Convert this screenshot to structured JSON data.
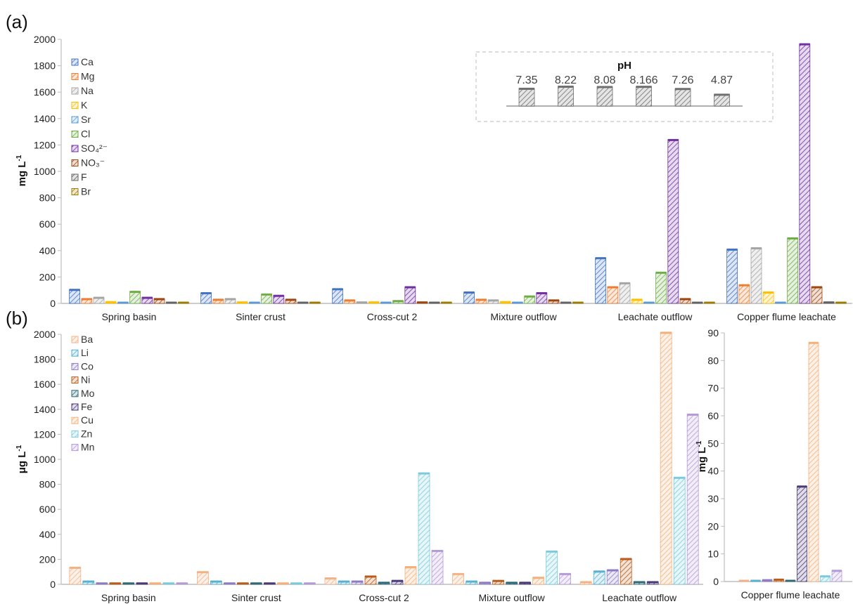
{
  "panel_labels": {
    "a": "(a)",
    "b": "(b)"
  },
  "chart_data": [
    {
      "type": "bar",
      "panel": "a",
      "categories": [
        "Spring basin",
        "Sinter crust",
        "Cross-cut 2",
        "Mixture outflow",
        "Leachate outflow",
        "Copper flume leachate"
      ],
      "ylabel": "mg L",
      "ylabel_sup": "-1",
      "ylim": [
        0,
        2000
      ],
      "yticks": [
        0,
        200,
        400,
        600,
        800,
        1000,
        1200,
        1400,
        1600,
        1800,
        2000
      ],
      "legend_position": "top-left",
      "series": [
        {
          "name": "Ca",
          "color": "#4472C4",
          "values": [
            105,
            80,
            110,
            85,
            345,
            410
          ]
        },
        {
          "name": "Mg",
          "color": "#ED7D31",
          "values": [
            35,
            30,
            25,
            30,
            125,
            140
          ]
        },
        {
          "name": "Na",
          "color": "#A5A5A5",
          "values": [
            45,
            35,
            10,
            25,
            155,
            420
          ]
        },
        {
          "name": "K",
          "color": "#FFC000",
          "values": [
            12,
            10,
            10,
            12,
            30,
            85
          ]
        },
        {
          "name": "Sr",
          "color": "#5B9BD5",
          "values": [
            5,
            5,
            5,
            5,
            5,
            5
          ]
        },
        {
          "name": "Cl",
          "color": "#70AD47",
          "values": [
            90,
            70,
            20,
            55,
            235,
            495
          ]
        },
        {
          "name": "SO₄²⁻",
          "color": "#7030A0",
          "values": [
            45,
            60,
            125,
            80,
            1240,
            1965
          ]
        },
        {
          "name": "NO₃⁻",
          "color": "#A0460F",
          "values": [
            35,
            30,
            10,
            25,
            35,
            125
          ]
        },
        {
          "name": "F",
          "color": "#636363",
          "values": [
            5,
            5,
            5,
            5,
            5,
            10
          ]
        },
        {
          "name": "Br",
          "color": "#9E7C00",
          "values": [
            3,
            3,
            3,
            3,
            3,
            5
          ]
        }
      ],
      "ph_inset": {
        "title": "pH",
        "values": [
          "7.35",
          "8.22",
          "8.08",
          "8.166",
          "7.26",
          "4.87"
        ],
        "numeric": [
          7.35,
          8.22,
          8.08,
          8.166,
          7.26,
          4.87
        ]
      }
    },
    {
      "type": "bar",
      "panel": "b-left",
      "categories": [
        "Spring basin",
        "Sinter crust",
        "Cross-cut 2",
        "Mixture outflow",
        "Leachate outflow"
      ],
      "ylabel": "μg L",
      "ylabel_sup": "-1",
      "ylim": [
        0,
        2000
      ],
      "yticks": [
        0,
        200,
        400,
        600,
        800,
        1000,
        1200,
        1400,
        1600,
        1800,
        2000
      ],
      "legend_position": "top-left",
      "series": [
        {
          "name": "Ba",
          "color": "#F4B183",
          "values": [
            135,
            100,
            50,
            85,
            20
          ]
        },
        {
          "name": "Li",
          "color": "#5BB0D0",
          "values": [
            25,
            25,
            25,
            25,
            105
          ]
        },
        {
          "name": "Co",
          "color": "#8E7CC3",
          "values": [
            10,
            10,
            25,
            15,
            115
          ]
        },
        {
          "name": "Ni",
          "color": "#B85C1C",
          "values": [
            10,
            10,
            65,
            30,
            205
          ]
        },
        {
          "name": "Mo",
          "color": "#2E6A78",
          "values": [
            10,
            10,
            15,
            15,
            20
          ]
        },
        {
          "name": "Fe",
          "color": "#4B3A78",
          "values": [
            10,
            10,
            30,
            15,
            20
          ]
        },
        {
          "name": "Cu",
          "color": "#F5B07A",
          "values": [
            10,
            10,
            140,
            55,
            2015
          ]
        },
        {
          "name": "Zn",
          "color": "#7CCBDD",
          "values": [
            10,
            10,
            890,
            265,
            855
          ]
        },
        {
          "name": "Mn",
          "color": "#B49BD8",
          "values": [
            10,
            10,
            270,
            85,
            1360
          ]
        }
      ]
    },
    {
      "type": "bar",
      "panel": "b-right",
      "categories": [
        "Copper flume leachate"
      ],
      "ylabel": "mg L",
      "ylabel_sup": "-1",
      "ylim": [
        0,
        90
      ],
      "yticks": [
        0,
        10,
        20,
        30,
        40,
        50,
        60,
        70,
        80,
        90
      ],
      "series": [
        {
          "name": "Ba",
          "color": "#F4B183",
          "values": [
            0.2
          ]
        },
        {
          "name": "Li",
          "color": "#5BB0D0",
          "values": [
            0.3
          ]
        },
        {
          "name": "Co",
          "color": "#8E7CC3",
          "values": [
            0.6
          ]
        },
        {
          "name": "Ni",
          "color": "#B85C1C",
          "values": [
            0.8
          ]
        },
        {
          "name": "Mo",
          "color": "#2E6A78",
          "values": [
            0.2
          ]
        },
        {
          "name": "Fe",
          "color": "#4B3A78",
          "values": [
            34.5
          ]
        },
        {
          "name": "Cu",
          "color": "#F5B07A",
          "values": [
            86.5
          ]
        },
        {
          "name": "Zn",
          "color": "#7CCBDD",
          "values": [
            2.0
          ]
        },
        {
          "name": "Mn",
          "color": "#B49BD8",
          "values": [
            4.0
          ]
        }
      ]
    }
  ]
}
